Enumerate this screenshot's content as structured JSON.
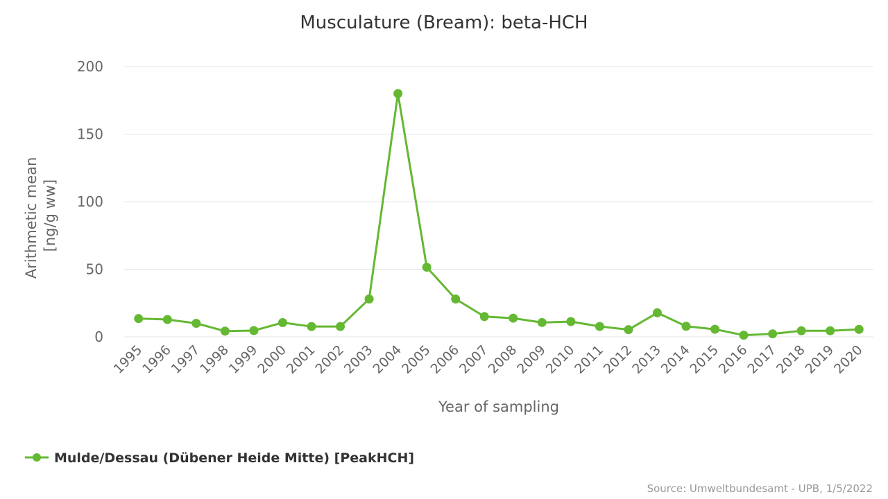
{
  "chart_data": {
    "type": "line",
    "title": "Musculature (Bream): beta-HCH",
    "xlabel": "Year of sampling",
    "ylabel_lines": [
      "Arithmetic mean",
      "[ng/g ww]"
    ],
    "ylim": [
      0,
      200
    ],
    "yticks": [
      0,
      50,
      100,
      150,
      200
    ],
    "grid": true,
    "legend_position": "bottom-left",
    "categories": [
      "1995",
      "1996",
      "1997",
      "1998",
      "1999",
      "2000",
      "2001",
      "2002",
      "2003",
      "2004",
      "2005",
      "2006",
      "2007",
      "2008",
      "2009",
      "2010",
      "2011",
      "2012",
      "2013",
      "2014",
      "2015",
      "2016",
      "2017",
      "2018",
      "2019",
      "2020"
    ],
    "series": [
      {
        "name": "Mulde/Dessau (Dübener Heide Mitte) [PeakHCH]",
        "color": "#64b832",
        "values": [
          13.5,
          12.8,
          10,
          4.2,
          4.6,
          10.5,
          7.6,
          7.6,
          28,
          180,
          51.5,
          28,
          15,
          13.8,
          10.6,
          11.3,
          7.7,
          5.3,
          17.8,
          7.8,
          5.6,
          1.2,
          2.2,
          4.5,
          4.5,
          5.5
        ]
      }
    ],
    "credits": "Source: Umweltbundesamt - UPB, 1/5/2022"
  }
}
